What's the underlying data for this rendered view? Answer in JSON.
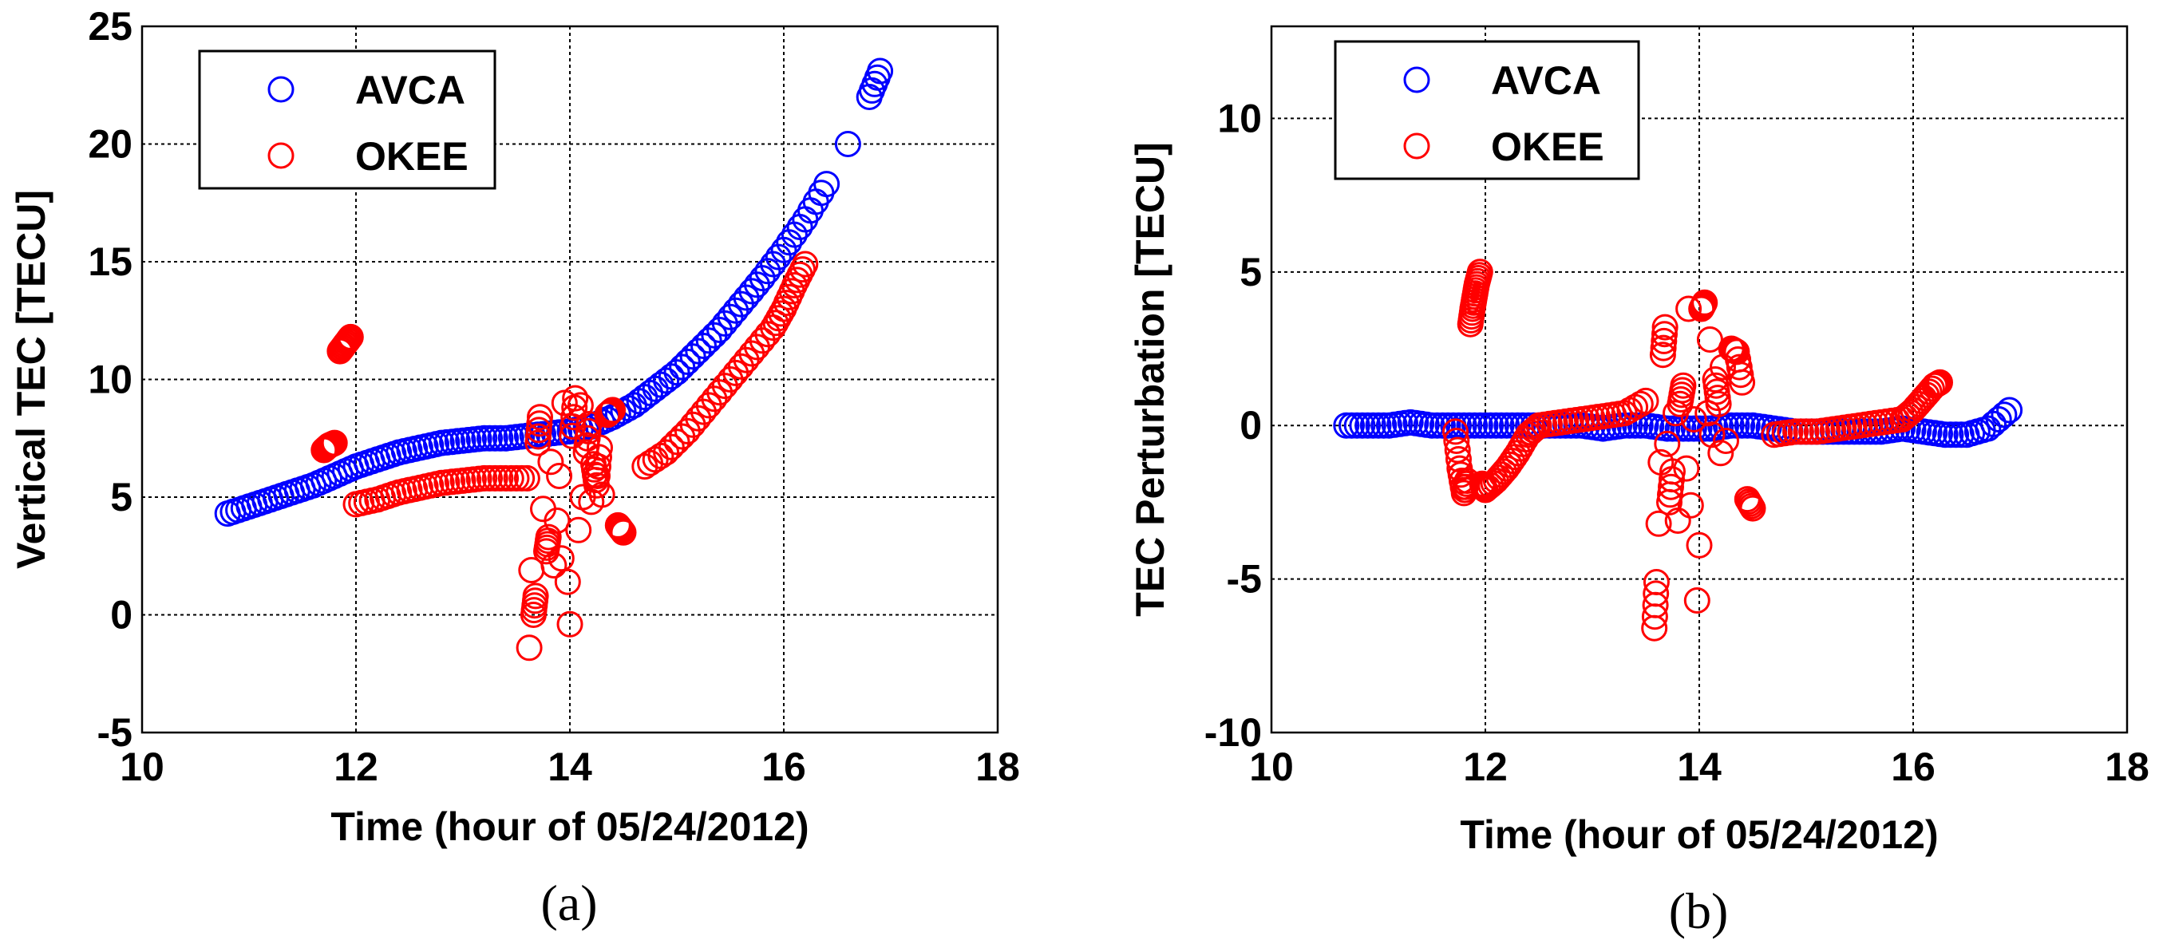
{
  "chart_data": [
    {
      "type": "scatter",
      "caption": "(a)",
      "xlabel": "Time (hour of 05/24/2012)",
      "ylabel": "Vertical TEC [TECU]",
      "xlim": [
        10,
        18
      ],
      "ylim": [
        -5,
        25
      ],
      "xticks": [
        10,
        12,
        14,
        16,
        18
      ],
      "yticks": [
        -5,
        0,
        5,
        10,
        15,
        20,
        25
      ],
      "grid": true,
      "legend_position": "top-left",
      "series": [
        {
          "name": "AVCA",
          "color": "#0000ff",
          "x": [
            10.8,
            11.0,
            11.2,
            11.4,
            11.6,
            11.8,
            12.0,
            12.2,
            12.4,
            12.6,
            12.8,
            13.0,
            13.2,
            13.4,
            13.6,
            13.8,
            14.0,
            14.2,
            14.4,
            14.6,
            14.8,
            15.0,
            15.2,
            15.4,
            15.6,
            15.8,
            16.0,
            16.2,
            16.4,
            16.6,
            16.8,
            16.9
          ],
          "y": [
            4.3,
            4.6,
            4.9,
            5.2,
            5.5,
            5.9,
            6.3,
            6.6,
            6.9,
            7.1,
            7.3,
            7.4,
            7.5,
            7.5,
            7.6,
            7.7,
            7.8,
            8.0,
            8.4,
            8.9,
            9.6,
            10.3,
            11.2,
            12.1,
            13.2,
            14.3,
            15.5,
            16.8,
            18.3,
            20.0,
            22.0,
            23.1
          ]
        },
        {
          "name": "OKEE",
          "color": "#ff0000",
          "x": [
            11.7,
            11.75,
            11.8,
            11.85,
            11.9,
            11.95,
            12.0,
            12.2,
            12.4,
            12.6,
            12.8,
            13.0,
            13.2,
            13.4,
            13.6,
            13.62,
            13.64,
            13.66,
            13.68,
            13.7,
            13.72,
            13.75,
            13.78,
            13.8,
            13.82,
            13.85,
            13.88,
            13.9,
            13.92,
            13.95,
            13.98,
            14.0,
            14.02,
            14.05,
            14.08,
            14.1,
            14.12,
            14.15,
            14.18,
            14.2,
            14.22,
            14.25,
            14.28,
            14.3,
            14.35,
            14.4,
            14.45,
            14.5,
            14.7,
            14.9,
            15.1,
            15.3,
            15.5,
            15.7,
            15.9,
            16.0,
            16.1,
            16.2
          ],
          "y": [
            7.0,
            7.2,
            7.3,
            11.2,
            11.5,
            11.8,
            4.7,
            4.9,
            5.2,
            5.4,
            5.6,
            5.7,
            5.8,
            5.8,
            5.8,
            -1.4,
            1.9,
            0.0,
            0.8,
            7.3,
            8.4,
            4.5,
            2.7,
            3.3,
            6.5,
            2.1,
            4.0,
            5.9,
            2.4,
            9.0,
            1.4,
            -0.4,
            7.6,
            9.2,
            3.6,
            8.9,
            5.0,
            6.9,
            8.1,
            4.8,
            6.4,
            5.5,
            7.1,
            5.1,
            8.5,
            8.7,
            3.8,
            3.5,
            6.3,
            6.9,
            7.8,
            8.9,
            10.0,
            11.1,
            12.2,
            13.0,
            14.0,
            14.9
          ]
        }
      ]
    },
    {
      "type": "scatter",
      "caption": "(b)",
      "xlabel": "Time (hour of 05/24/2012)",
      "ylabel": "TEC Perturbation [TECU]",
      "xlim": [
        10,
        18
      ],
      "ylim": [
        -10,
        13
      ],
      "xticks": [
        10,
        12,
        14,
        16,
        18
      ],
      "yticks": [
        -10,
        -5,
        0,
        5,
        10
      ],
      "grid": true,
      "legend_position": "top-left",
      "series": [
        {
          "name": "AVCA",
          "color": "#0000ff",
          "x": [
            10.7,
            10.9,
            11.1,
            11.3,
            11.5,
            11.7,
            11.9,
            12.1,
            12.3,
            12.5,
            12.7,
            12.9,
            13.1,
            13.3,
            13.5,
            13.7,
            13.9,
            14.1,
            14.3,
            14.5,
            14.7,
            14.9,
            15.1,
            15.3,
            15.5,
            15.7,
            15.9,
            16.1,
            16.3,
            16.5,
            16.7,
            16.9
          ],
          "y": [
            0.0,
            0.0,
            0.0,
            0.1,
            0.0,
            0.0,
            0.0,
            0.0,
            0.0,
            0.0,
            0.0,
            0.0,
            -0.1,
            0.0,
            0.0,
            -0.1,
            -0.1,
            -0.1,
            0.0,
            0.0,
            -0.1,
            -0.2,
            -0.2,
            -0.2,
            -0.2,
            -0.2,
            -0.1,
            -0.2,
            -0.3,
            -0.3,
            -0.1,
            0.5
          ]
        },
        {
          "name": "OKEE",
          "color": "#ff0000",
          "x": [
            11.72,
            11.76,
            11.8,
            11.83,
            11.86,
            11.88,
            11.9,
            11.92,
            11.95,
            11.97,
            12.0,
            12.1,
            12.2,
            12.3,
            12.4,
            12.5,
            12.7,
            12.9,
            13.1,
            13.3,
            13.5,
            13.58,
            13.6,
            13.62,
            13.64,
            13.66,
            13.68,
            13.7,
            13.72,
            13.75,
            13.78,
            13.8,
            13.82,
            13.85,
            13.88,
            13.9,
            13.92,
            13.95,
            13.98,
            14.0,
            14.02,
            14.05,
            14.08,
            14.1,
            14.12,
            14.15,
            14.18,
            14.2,
            14.22,
            14.25,
            14.3,
            14.35,
            14.4,
            14.45,
            14.5,
            14.7,
            14.9,
            15.1,
            15.3,
            15.5,
            15.7,
            15.9,
            16.0,
            16.1,
            16.2,
            16.25
          ],
          "y": [
            -0.2,
            -1.4,
            -2.2,
            -1.8,
            3.3,
            3.8,
            4.2,
            4.6,
            5.0,
            -1.9,
            -2.1,
            -1.8,
            -1.4,
            -0.9,
            -0.3,
            0.0,
            0.1,
            0.2,
            0.3,
            0.4,
            0.8,
            -6.6,
            -5.1,
            -3.2,
            -1.2,
            2.3,
            3.2,
            -0.6,
            -2.5,
            -1.5,
            0.4,
            -3.1,
            0.7,
            1.3,
            -1.4,
            3.8,
            -2.6,
            0.2,
            -5.7,
            -3.9,
            3.8,
            4.0,
            0.4,
            2.8,
            -0.3,
            1.5,
            0.7,
            -0.9,
            1.9,
            -0.5,
            2.5,
            2.4,
            1.4,
            -2.4,
            -2.7,
            -0.3,
            -0.2,
            -0.2,
            -0.1,
            0.0,
            0.1,
            0.2,
            0.5,
            0.9,
            1.3,
            1.4
          ]
        }
      ]
    }
  ]
}
